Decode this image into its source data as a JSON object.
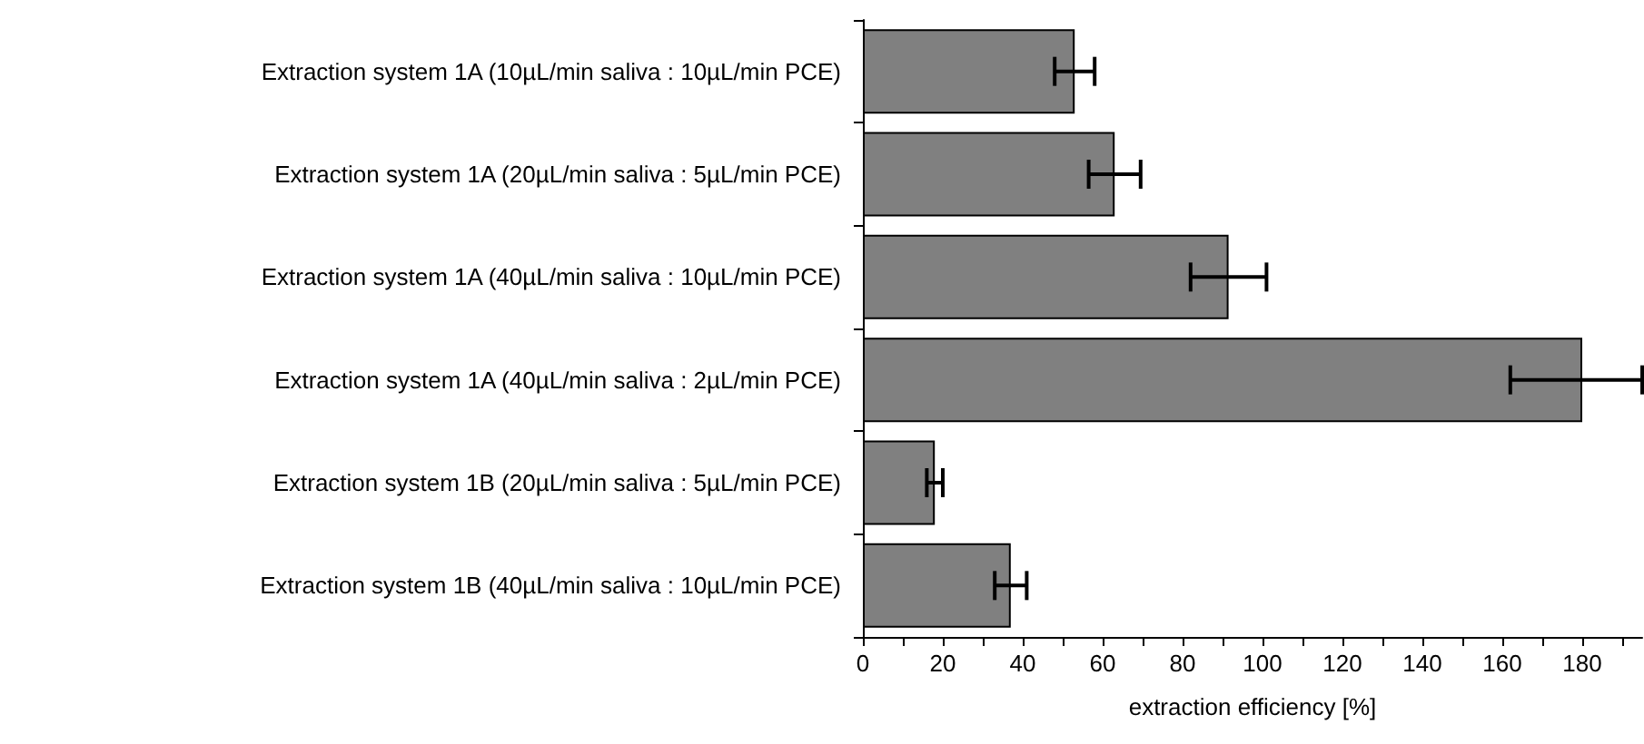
{
  "chart_data": {
    "type": "bar",
    "orientation": "horizontal",
    "xlabel": "extraction efficiency [%]",
    "categories": [
      "Extraction system 1A (10µL/min saliva : 10µL/min PCE)",
      "Extraction system 1A (20µL/min saliva : 5µL/min PCE)",
      "Extraction system 1A (40µL/min saliva : 10µL/min PCE)",
      "Extraction system 1A (40µL/min saliva : 2µL/min PCE)",
      "Extraction system 1B (20µL/min saliva : 5µL/min PCE)",
      "Extraction system 1B (40µL/min saliva : 10µL/min PCE)"
    ],
    "values": [
      53,
      63,
      91.5,
      180,
      18,
      37
    ],
    "errors": [
      5,
      6.5,
      9.5,
      [
        162,
        195
      ],
      2,
      4
    ],
    "color": "#808080",
    "xlim": [
      0,
      195
    ],
    "xticks": [
      0,
      {
        "value": 10,
        "label": null
      },
      20,
      {
        "value": 30,
        "label": null
      },
      40,
      {
        "value": 50,
        "label": null
      },
      60,
      {
        "value": 70,
        "label": null
      },
      80,
      {
        "value": 90,
        "label": null
      },
      100,
      {
        "value": 110,
        "label": null
      },
      120,
      {
        "value": 130,
        "label": null
      },
      140,
      {
        "value": 150,
        "label": null
      },
      160,
      {
        "value": 170,
        "label": null
      },
      180,
      {
        "value": 190,
        "label": null
      }
    ],
    "grid": false
  }
}
